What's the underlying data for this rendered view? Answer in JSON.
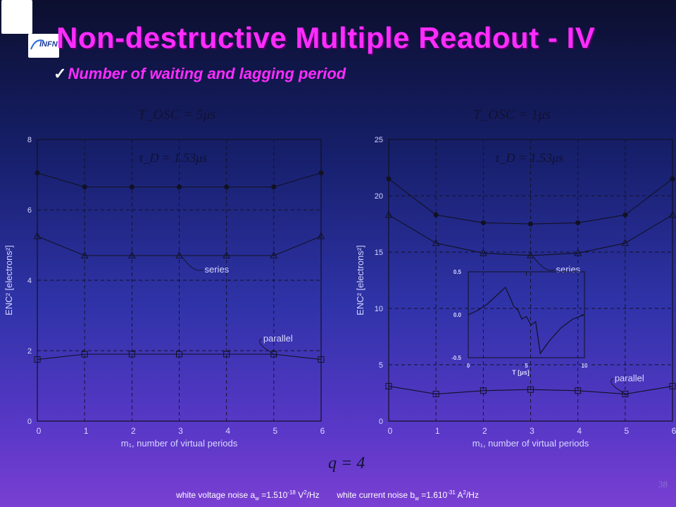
{
  "title": "Non-destructive Multiple Readout - IV",
  "subtitle": "Number of waiting and lagging period",
  "page_number": "38",
  "footer": {
    "voltage_label": "white voltage noise a",
    "voltage_sub": "w",
    "voltage_value": " =1.510",
    "voltage_exp": "-18",
    "voltage_unit": " V",
    "voltage_unit_exp": "2",
    "voltage_tail": "/Hz",
    "current_label": "white current noise b",
    "current_sub": "w",
    "current_value": " =1.610",
    "current_exp": "-31",
    "current_unit": " A",
    "current_unit_exp": "2",
    "current_tail": "/Hz"
  },
  "formulas": {
    "left_top": "T_OSC = 5μs",
    "right_top": "T_OSC = 1μs",
    "left_tau": "τ_D = 1.53μs",
    "right_tau": "τ_D = 1.53μs",
    "bottom": "q = 4"
  },
  "chart_data": [
    {
      "type": "line",
      "xlabel": "m₁, number of  virtual periods",
      "ylabel": "ENC² [electrons²]",
      "xlim": [
        0,
        6
      ],
      "ylim": [
        0,
        8
      ],
      "xticks": [
        "0",
        "1",
        "2",
        "3",
        "4",
        "5",
        "6"
      ],
      "yticks": [
        "0",
        "2",
        "4",
        "6",
        "8"
      ],
      "grid": true,
      "x": [
        0,
        1,
        2,
        3,
        4,
        5,
        6
      ],
      "series": [
        {
          "marker": "circle",
          "values": [
            7.05,
            6.65,
            6.65,
            6.65,
            6.65,
            6.65,
            7.05
          ]
        },
        {
          "marker": "triangle",
          "label": "series",
          "values": [
            5.25,
            4.7,
            4.7,
            4.7,
            4.7,
            4.7,
            5.25
          ]
        },
        {
          "marker": "square",
          "label": "parallel",
          "values": [
            1.75,
            1.9,
            1.9,
            1.9,
            1.9,
            1.9,
            1.75
          ]
        }
      ]
    },
    {
      "type": "line",
      "xlabel": "m₁, number of  virtual periods",
      "ylabel": "ENC² [electrons²]",
      "xlim": [
        0,
        6
      ],
      "ylim": [
        0,
        25
      ],
      "xticks": [
        "0",
        "1",
        "2",
        "3",
        "4",
        "5",
        "6"
      ],
      "yticks": [
        "0",
        "5",
        "10",
        "15",
        "20",
        "25"
      ],
      "grid": true,
      "x": [
        0,
        1,
        2,
        3,
        4,
        5,
        6
      ],
      "series": [
        {
          "marker": "circle",
          "values": [
            21.5,
            18.3,
            17.6,
            17.5,
            17.6,
            18.3,
            21.5
          ]
        },
        {
          "marker": "triangle",
          "label": "series",
          "values": [
            18.3,
            15.8,
            14.9,
            14.7,
            14.9,
            15.8,
            18.3
          ]
        },
        {
          "marker": "square",
          "label": "parallel",
          "values": [
            3.1,
            2.4,
            2.7,
            2.8,
            2.7,
            2.4,
            3.1
          ]
        }
      ],
      "inset": {
        "type": "line",
        "xlabel": "T [μs]",
        "xlim": [
          0,
          10
        ],
        "ylim": [
          -0.5,
          0.5
        ],
        "xticks": [
          "0",
          "5",
          "10"
        ],
        "yticks": [
          "-0.5",
          "0.0",
          "0.5"
        ],
        "x": [
          0,
          0.8,
          1.6,
          2.4,
          3.2,
          3.6,
          3.9,
          4.3,
          4.6,
          5.0,
          5.4,
          5.8,
          6.2,
          7.0,
          8.0,
          9.0,
          10.0
        ],
        "values": [
          0.0,
          0.05,
          0.12,
          0.22,
          0.32,
          0.2,
          0.1,
          0.05,
          -0.05,
          -0.02,
          -0.12,
          -0.08,
          -0.45,
          -0.3,
          -0.15,
          -0.05,
          0.0
        ]
      }
    }
  ]
}
